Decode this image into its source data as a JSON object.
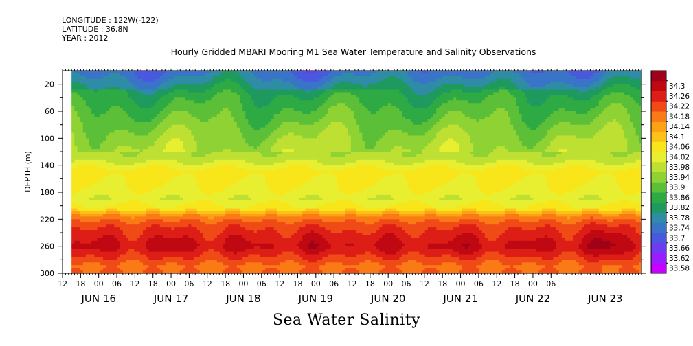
{
  "header": {
    "longitude": "LONGITUDE : 122W(-122)",
    "latitude": "LATITUDE : 36.8N",
    "year": "YEAR : 2012"
  },
  "title": "Hourly Gridded MBARI Mooring M1 Sea Water Temperature and Salinity Observations",
  "chart_data": {
    "type": "heatmap",
    "title": "Hourly Gridded MBARI Mooring M1 Sea Water Temperature and Salinity Observations",
    "subtitle": "Sea Water Salinity",
    "xlabel": "",
    "ylabel": "DEPTH (m)",
    "x_range": [
      "2012-06-15T12:00",
      "2012-06-23T12:00"
    ],
    "data_start": "2012-06-15T15:00",
    "y_range": [
      0,
      300
    ],
    "y_inverted": true,
    "y_ticks": [
      20,
      60,
      100,
      140,
      180,
      220,
      260,
      300
    ],
    "x_hour_ticks": [
      "12",
      "18",
      "00",
      "06",
      "12",
      "18",
      "00",
      "06",
      "12",
      "18",
      "00",
      "06",
      "12",
      "18",
      "00",
      "06",
      "12",
      "18",
      "00",
      "06",
      "12",
      "18",
      "00",
      "06",
      "12",
      "18",
      "00",
      "06"
    ],
    "x_day_labels": [
      "JUN 16",
      "JUN 17",
      "JUN 18",
      "JUN 19",
      "JUN 20",
      "JUN 21",
      "JUN 22",
      "JUN 23"
    ],
    "colorbar": {
      "levels": [
        33.58,
        33.62,
        33.66,
        33.7,
        33.74,
        33.78,
        33.82,
        33.86,
        33.9,
        33.94,
        33.98,
        34.02,
        34.06,
        34.1,
        34.14,
        34.18,
        34.22,
        34.26,
        34.3
      ],
      "labels": [
        "33.58",
        "33.62",
        "33.66",
        "33.7",
        "33.74",
        "33.78",
        "33.82",
        "33.86",
        "33.9",
        "33.94",
        "33.98",
        "34.02",
        "34.06",
        "34.1",
        "34.14",
        "34.18",
        "34.22",
        "34.26",
        "34.3"
      ],
      "colors": [
        "#c800ff",
        "#9a1cff",
        "#6e3cf0",
        "#4a58e0",
        "#3a74c8",
        "#2e8ca6",
        "#1f9a5e",
        "#2eaa45",
        "#5cbf38",
        "#8fd234",
        "#bde032",
        "#e8ee30",
        "#f8e61a",
        "#fcc218",
        "#fca214",
        "#fa7a16",
        "#f04a16",
        "#dc1e16",
        "#c00812",
        "#a00018"
      ]
    },
    "profile": {
      "depths": [
        2,
        10,
        20,
        40,
        60,
        80,
        100,
        130,
        150,
        170,
        190,
        205,
        215,
        225,
        235,
        250,
        260,
        275,
        290,
        300
      ],
      "salinity": [
        33.74,
        33.76,
        33.79,
        33.84,
        33.87,
        33.9,
        33.93,
        33.96,
        34.04,
        34.02,
        33.99,
        34.04,
        34.14,
        34.18,
        34.2,
        34.22,
        34.24,
        34.2,
        34.16,
        34.18
      ]
    },
    "deep_maxima_days": [
      "2012-06-16",
      "2012-06-17",
      "2012-06-18",
      "2012-06-19",
      "2012-06-20",
      "2012-06-21",
      "2012-06-22",
      "2012-06-23"
    ]
  }
}
